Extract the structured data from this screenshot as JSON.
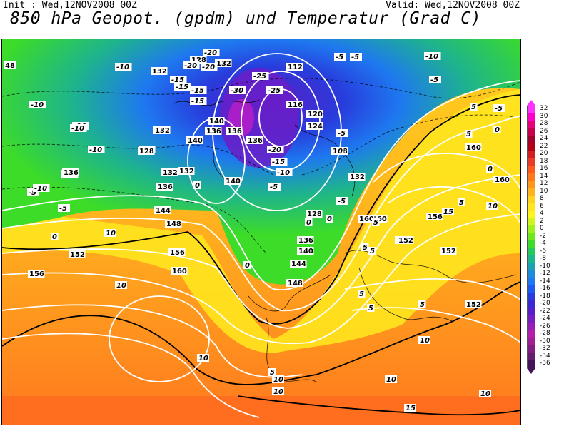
{
  "header": {
    "init": "Init : Wed,12NOV2008 00Z",
    "valid": "Valid: Wed,12NOV2008 00Z",
    "title": "850 hPa Geopot. (gpdm) und Temperatur (Grad C)"
  },
  "legend": {
    "levels": [
      "32",
      "30",
      "28",
      "26",
      "24",
      "22",
      "20",
      "18",
      "16",
      "14",
      "12",
      "10",
      "8",
      "6",
      "4",
      "2",
      "0",
      "-2",
      "-4",
      "-6",
      "-8",
      "-10",
      "-12",
      "-14",
      "-16",
      "-18",
      "-20",
      "-22",
      "-24",
      "-26",
      "-28",
      "-30",
      "-32",
      "-34",
      "-36"
    ],
    "colors": [
      "#ff33ff",
      "#ff00c8",
      "#e6007a",
      "#c8004b",
      "#a0002a",
      "#b40014",
      "#d21e1e",
      "#e63c28",
      "#ff5a1e",
      "#ff781e",
      "#ff961e",
      "#ffb41e",
      "#ffd21e",
      "#ffe61e",
      "#fff51e",
      "#d2f51e",
      "#a0f01e",
      "#6ee61e",
      "#3cdc28",
      "#28c85a",
      "#1eb48c",
      "#1ea0b4",
      "#1e8cdc",
      "#1e78f0",
      "#1e5af0",
      "#283cdc",
      "#3c28d2",
      "#5a1ec8",
      "#781ebe",
      "#961eb4",
      "#b41eaa",
      "#a01e96",
      "#821e82",
      "#641e6e",
      "#46145a"
    ]
  },
  "map": {
    "geopotential_labels": [
      "132",
      "128",
      "132",
      "132",
      "132",
      "112",
      "120",
      "116",
      "124",
      "128",
      "140",
      "136",
      "140",
      "136",
      "128",
      "136",
      "136",
      "132",
      "136",
      "128",
      "140",
      "144",
      "148",
      "152",
      "156",
      "160",
      "156",
      "160",
      "160",
      "152",
      "148",
      "144",
      "140",
      "136",
      "132",
      "128",
      "152",
      "156",
      "152",
      "152",
      "160",
      "160",
      "48",
      "136"
    ],
    "temperature_labels": [
      "-20",
      "-20",
      "-25",
      "-20",
      "-15",
      "-15",
      "-10",
      "-10",
      "-15",
      "-25",
      "-20",
      "-30",
      "-10",
      "-15",
      "-5",
      "-5",
      "-10",
      "-5",
      "-5",
      "-10",
      "-5",
      "-10",
      "-15",
      "-10",
      "-10",
      "-5",
      "-5",
      "0",
      "-5",
      "0",
      "5",
      "0",
      "0",
      "0",
      "5",
      "10",
      "10",
      "5",
      "10",
      "10",
      "10",
      "10",
      "10",
      "15",
      "5",
      "5",
      "5",
      "5",
      "10",
      "5",
      "10",
      "15",
      "0",
      "-5",
      "5",
      "0",
      "5",
      "0"
    ]
  }
}
